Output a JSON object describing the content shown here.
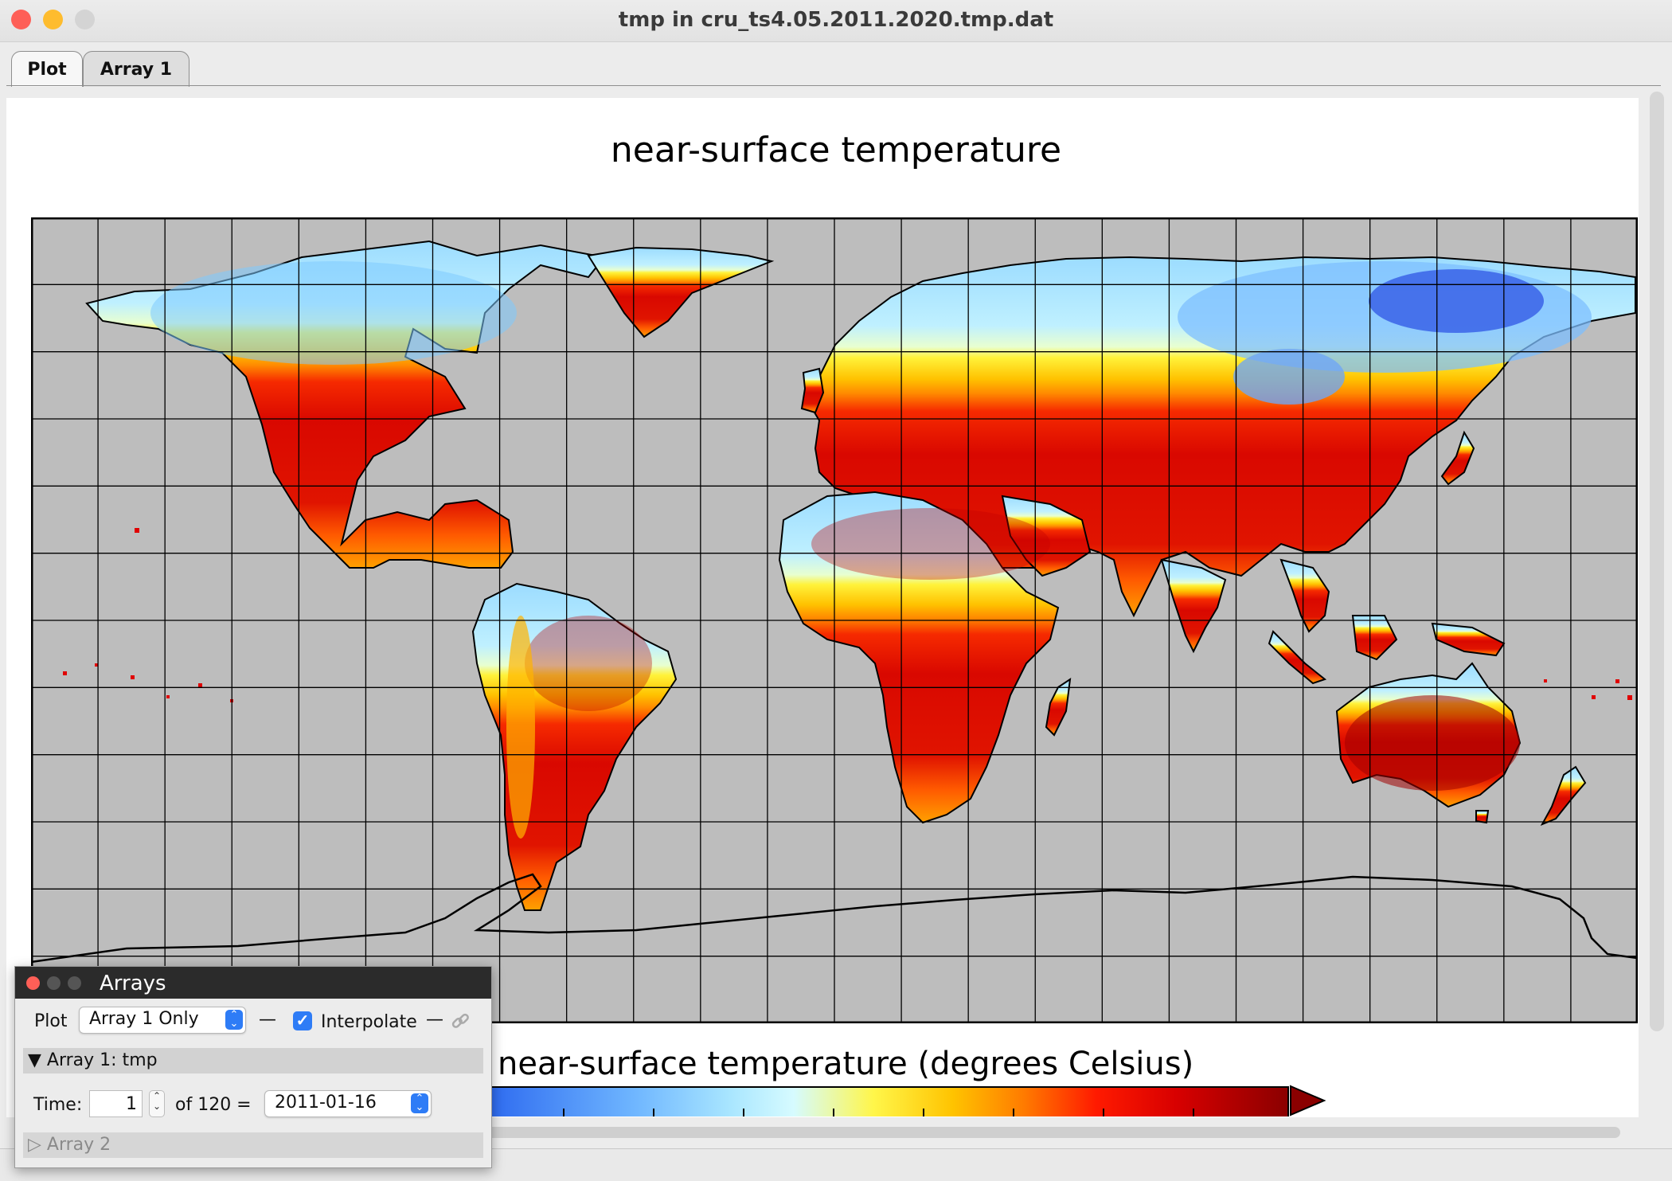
{
  "window": {
    "title": "tmp in cru_ts4.05.2011.2020.tmp.dat",
    "traffic_colors": [
      "#fe5f57",
      "#febc2e",
      "#d4d4d4"
    ]
  },
  "tabs": [
    {
      "label": "Plot",
      "active": true
    },
    {
      "label": "Array 1",
      "active": false
    }
  ],
  "plot": {
    "title": "near-surface temperature",
    "colorbar_label": "near-surface temperature (degrees Celsius)",
    "ocean_color": "#bdbdbd",
    "grid_columns": 24,
    "grid_rows": 12,
    "colors": {
      "cold_deep": "#3a63e8",
      "cold": "#8fd2ff",
      "cool": "#c8f4ff",
      "mild": "#fff22a",
      "warm": "#ff9a00",
      "hot": "#ee1c00",
      "very_hot": "#b80000"
    }
  },
  "arrays_panel": {
    "title": "Arrays",
    "plot_label": "Plot",
    "plot_select_value": "Array 1 Only",
    "interpolate_label": "Interpolate",
    "interpolate_checked": true,
    "array1_header": "▼ Array 1: tmp",
    "time_label": "Time:",
    "time_value": "1",
    "time_of": "of 120 =",
    "date_value": "2011-01-16",
    "array2_header": "▷ Array 2"
  }
}
